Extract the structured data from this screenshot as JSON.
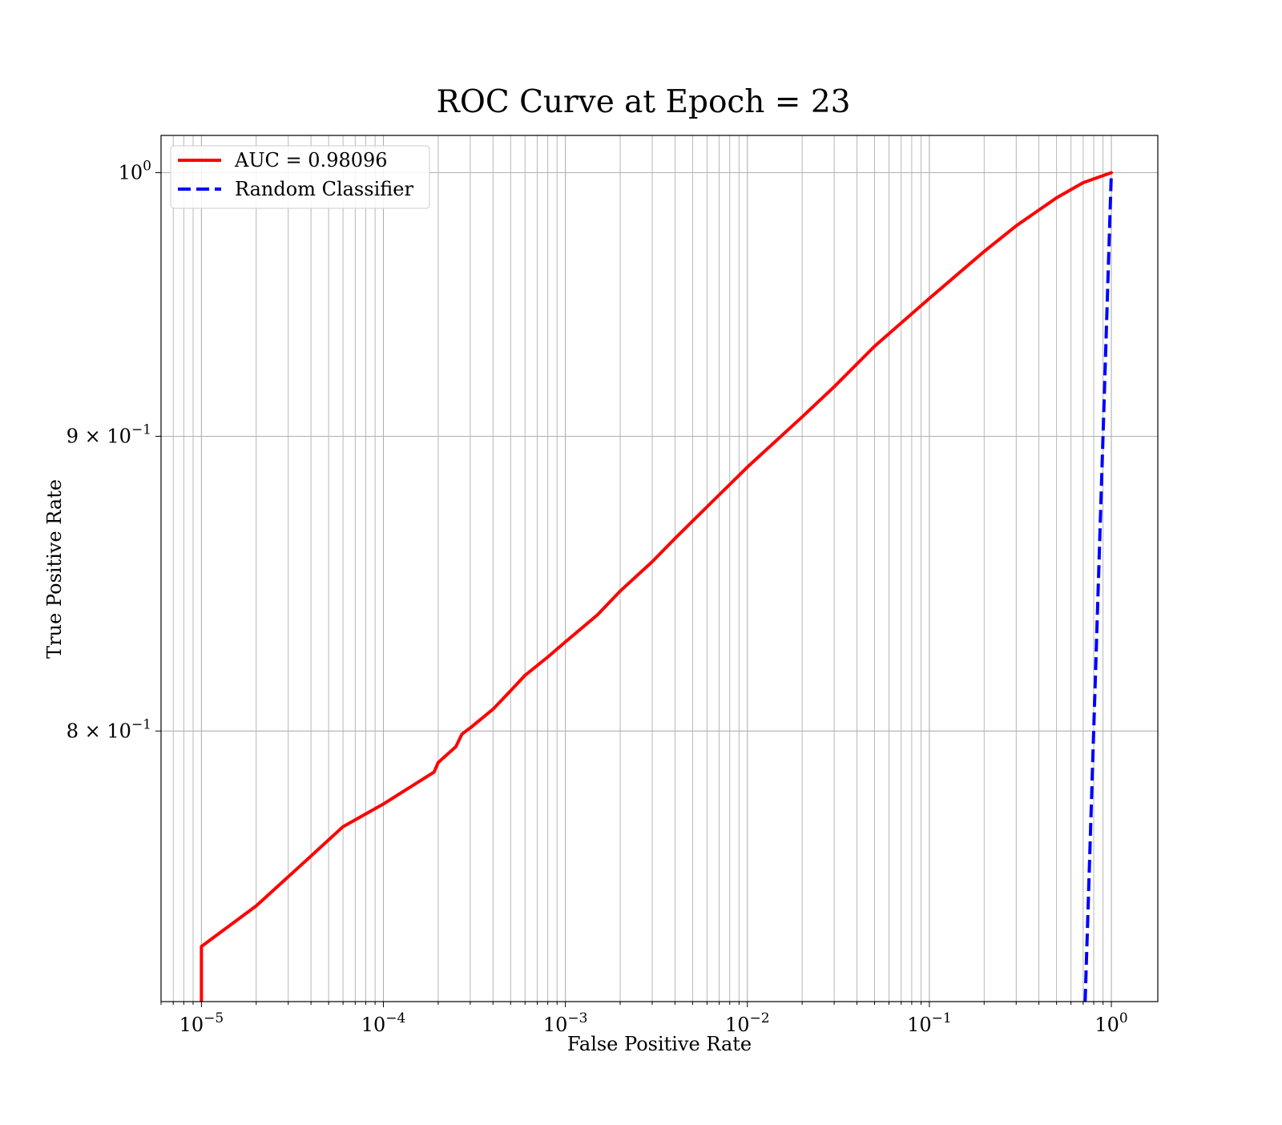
{
  "chart_data": {
    "type": "line",
    "title": "ROC Curve at Epoch = 23",
    "xlabel": "False Positive Rate",
    "ylabel": "True Positive Rate",
    "xscale": "log",
    "yscale": "log",
    "xlim": [
      6e-06,
      1.8
    ],
    "ylim": [
      0.718,
      1.015
    ],
    "grid": "both (major and minor)",
    "legend_position": "upper left",
    "x_ticks": [
      {
        "value": 1e-05,
        "mant": "10",
        "exp": "−5"
      },
      {
        "value": 0.0001,
        "mant": "10",
        "exp": "−4"
      },
      {
        "value": 0.001,
        "mant": "10",
        "exp": "−3"
      },
      {
        "value": 0.01,
        "mant": "10",
        "exp": "−2"
      },
      {
        "value": 0.1,
        "mant": "10",
        "exp": "−1"
      },
      {
        "value": 1,
        "mant": "10",
        "exp": "0"
      }
    ],
    "y_ticks": [
      {
        "value": 0.8,
        "mant": "8 × 10",
        "exp": "−1"
      },
      {
        "value": 0.9,
        "mant": "9 × 10",
        "exp": "−1"
      },
      {
        "value": 1.0,
        "mant": "10",
        "exp": "0"
      }
    ],
    "series": [
      {
        "name": "AUC = 0.98096",
        "color": "#ff0000",
        "dash": "solid",
        "x": [
          1e-05,
          1e-05,
          2e-05,
          4e-05,
          6e-05,
          0.0001,
          0.00019,
          0.0002,
          0.00025,
          0.00027,
          0.0003,
          0.0004,
          0.0005,
          0.0006,
          0.0008,
          0.001,
          0.0015,
          0.002,
          0.003,
          0.004,
          0.006,
          0.01,
          0.02,
          0.03,
          0.05,
          0.1,
          0.2,
          0.3,
          0.5,
          0.7,
          1.0
        ],
        "y": [
          0.718,
          0.734,
          0.746,
          0.761,
          0.77,
          0.777,
          0.787,
          0.79,
          0.795,
          0.799,
          0.801,
          0.807,
          0.813,
          0.818,
          0.824,
          0.829,
          0.838,
          0.846,
          0.856,
          0.864,
          0.875,
          0.889,
          0.907,
          0.918,
          0.933,
          0.951,
          0.969,
          0.979,
          0.99,
          0.996,
          1.0
        ]
      },
      {
        "name": "Random Classifier",
        "color": "#0000ff",
        "dash": "dashed",
        "x": [
          0.718,
          1.0
        ],
        "y": [
          0.718,
          1.0
        ]
      }
    ]
  }
}
